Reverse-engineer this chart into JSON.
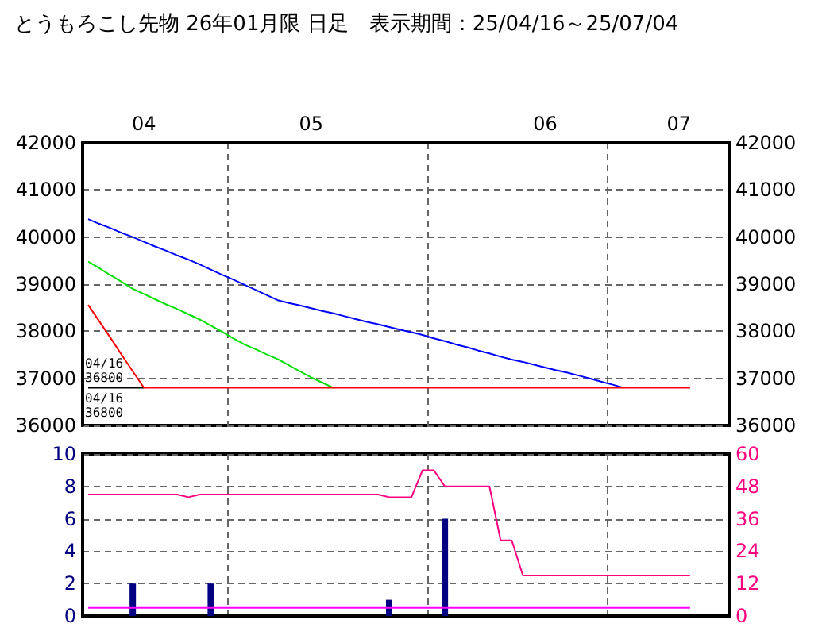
{
  "chart_data": [
    {
      "type": "line",
      "title": "とうもろこし先物 26年01月限 日足　表示期間：25/04/16～25/07/04",
      "categories": [
        null,
        null,
        null,
        null,
        null,
        "04",
        null,
        null,
        null,
        null,
        null,
        null,
        null,
        null,
        null,
        null,
        null,
        null,
        null,
        null,
        "05",
        null,
        null,
        null,
        null,
        null,
        null,
        null,
        null,
        null,
        null,
        null,
        null,
        null,
        null,
        null,
        null,
        null,
        null,
        null,
        null,
        "06",
        null,
        null,
        null,
        null,
        null,
        null,
        null,
        null,
        null,
        null,
        null,
        "07",
        null,
        null,
        null,
        null
      ],
      "ylim": [
        36000,
        42000
      ],
      "yticks": [
        36000,
        37000,
        38000,
        39000,
        40000,
        41000,
        42000
      ],
      "y2lim": [
        36000,
        42000
      ],
      "y2ticks": [
        36000,
        37000,
        38000,
        39000,
        40000,
        41000,
        42000
      ],
      "grid": true,
      "marker": "none",
      "series": [
        {
          "color": "#0000ff",
          "values": [
            40380,
            40280,
            40190,
            40090,
            40000,
            39900,
            39800,
            39710,
            39610,
            39520,
            39420,
            39310,
            39200,
            39100,
            38990,
            38880,
            38770,
            38660,
            38600,
            38550,
            38490,
            38430,
            38380,
            38320,
            38260,
            38200,
            38150,
            38090,
            38030,
            37980,
            37920,
            37850,
            37790,
            37720,
            37660,
            37590,
            37530,
            37460,
            37400,
            37350,
            37290,
            37230,
            37170,
            37120,
            37060,
            37000,
            36930,
            36870,
            36800,
            null,
            null,
            null,
            null,
            null,
            null,
            null,
            null,
            null
          ]
        },
        {
          "color": "#00e000",
          "values": [
            39480,
            39340,
            39190,
            39050,
            38900,
            38790,
            38680,
            38570,
            38470,
            38360,
            38250,
            38120,
            37990,
            37850,
            37720,
            37620,
            37510,
            37410,
            37280,
            37150,
            37020,
            36910,
            36800,
            null,
            null,
            null,
            null,
            null,
            null,
            null,
            null,
            null,
            null,
            null,
            null,
            null,
            null,
            null,
            null,
            null,
            null,
            null,
            null,
            null,
            null,
            null,
            null,
            null,
            null,
            null,
            null,
            null,
            null,
            null,
            null,
            null,
            null,
            null
          ]
        },
        {
          "color": "#000000",
          "values": [
            36800,
            36800,
            36800,
            36800,
            36800,
            36800,
            null,
            null,
            null,
            null,
            null,
            null,
            null,
            null,
            null,
            null,
            null,
            null,
            null,
            null,
            null,
            null,
            null,
            null,
            null,
            null,
            null,
            null,
            null,
            null,
            null,
            null,
            null,
            null,
            null,
            null,
            null,
            null,
            null,
            null,
            null,
            null,
            null,
            null,
            null,
            null,
            null,
            null,
            null,
            null,
            null,
            null,
            null,
            null,
            null,
            null,
            null,
            null
          ]
        },
        {
          "color": "#ff0000",
          "values": [
            38560,
            38210,
            37860,
            37500,
            37150,
            36800,
            36800,
            36800,
            36800,
            36800,
            36800,
            36800,
            36800,
            36800,
            36800,
            36800,
            36800,
            36800,
            36800,
            36800,
            36800,
            36800,
            36800,
            36800,
            36800,
            36800,
            36800,
            36800,
            36800,
            36800,
            36800,
            36800,
            36800,
            36800,
            36800,
            36800,
            36800,
            36800,
            36800,
            36800,
            36800,
            36800,
            36800,
            36800,
            36800,
            36800,
            36800,
            36800,
            36800,
            36800,
            36800,
            36800,
            36800,
            36800,
            36800,
            null,
            null,
            null
          ]
        }
      ],
      "annotations": [
        {
          "text": "04/16\n36800",
          "y": 36800
        },
        {
          "text": "04/16\n36800",
          "y": 36800
        }
      ]
    },
    {
      "type": "bar",
      "categories": [
        null,
        null,
        null,
        null,
        null,
        "04",
        null,
        null,
        null,
        null,
        null,
        null,
        null,
        null,
        null,
        null,
        null,
        null,
        null,
        null,
        "05",
        null,
        null,
        null,
        null,
        null,
        null,
        null,
        null,
        null,
        null,
        null,
        null,
        null,
        null,
        null,
        null,
        null,
        null,
        null,
        null,
        "06",
        null,
        null,
        null,
        null,
        null,
        null,
        null,
        null,
        null,
        null,
        null,
        "07",
        null,
        null,
        null,
        null
      ],
      "ylim": [
        0,
        10
      ],
      "yticks": [
        0,
        2,
        4,
        6,
        8,
        10
      ],
      "y2lim": [
        0,
        60
      ],
      "y2ticks": [
        0,
        12,
        24,
        36,
        48,
        60
      ],
      "grid": true,
      "marker": "none",
      "tick_labels": "y",
      "series": [
        {
          "color": "#000080",
          "values": [
            null,
            null,
            null,
            null,
            2,
            null,
            null,
            null,
            null,
            null,
            null,
            2,
            null,
            null,
            null,
            null,
            null,
            null,
            null,
            null,
            null,
            null,
            null,
            null,
            null,
            null,
            null,
            1,
            null,
            null,
            null,
            null,
            6,
            null,
            null,
            null,
            null,
            null,
            null,
            null,
            null,
            null,
            null,
            null,
            null,
            null,
            null,
            null,
            null,
            null,
            null,
            null,
            null,
            null,
            null,
            null,
            null,
            null
          ]
        },
        {
          "type": "line",
          "axis": "y2",
          "color": "#ff0080",
          "values": [
            45,
            45,
            45,
            45,
            45,
            45,
            45,
            45,
            45,
            44,
            45,
            45,
            45,
            45,
            45,
            45,
            45,
            45,
            45,
            45,
            45,
            45,
            45,
            45,
            45,
            45,
            45,
            44,
            44,
            44,
            54,
            54,
            48,
            48,
            48,
            48,
            48,
            28,
            28,
            15,
            15,
            15,
            15,
            15,
            15,
            15,
            15,
            15,
            15,
            15,
            15,
            15,
            15,
            15,
            15,
            null,
            null,
            null
          ]
        },
        {
          "type": "line",
          "axis": "y2",
          "color": "#ff00ff",
          "values": [
            3,
            3,
            3,
            3,
            3,
            3,
            3,
            3,
            3,
            3,
            3,
            3,
            3,
            3,
            3,
            3,
            3,
            3,
            3,
            3,
            3,
            3,
            3,
            3,
            3,
            3,
            3,
            3,
            3,
            3,
            3,
            3,
            3,
            3,
            3,
            3,
            3,
            3,
            3,
            3,
            3,
            3,
            3,
            3,
            3,
            3,
            3,
            3,
            3,
            3,
            3,
            3,
            3,
            3,
            3,
            null,
            null,
            null
          ]
        }
      ]
    }
  ]
}
